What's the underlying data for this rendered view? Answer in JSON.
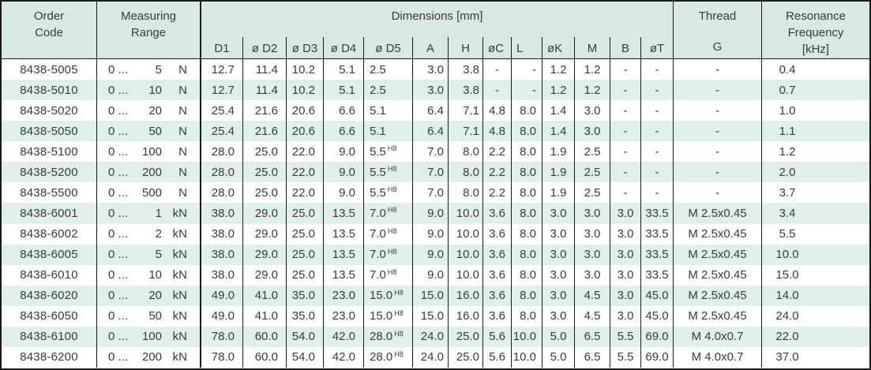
{
  "colors": {
    "header_bg": "#d7e9e4",
    "stripe_bg": "#dff0eb",
    "border": "#1a1a1a",
    "text": "#3a3a3a"
  },
  "table": {
    "header": {
      "order_line1": "Order",
      "order_line2": "Code",
      "range_line1": "Measuring",
      "range_line2": "Range",
      "dimensions": "Dimensions [mm]",
      "thread": "Thread",
      "res_line1": "Resonance",
      "res_line2": "Frequency",
      "sub": {
        "d1": "D1",
        "d2": "ø D2",
        "d3": "ø D3",
        "d4": "ø D4",
        "d5": "ø D5",
        "a": "A",
        "h": "H",
        "oc": "øC",
        "l": "L",
        "ok": "øK",
        "m": "M",
        "b": "B",
        "ot": "øT",
        "g": "G",
        "khz": "[kHz]"
      }
    },
    "rows": [
      {
        "code": "8438-5005",
        "range_from": "0 ...",
        "range_value": "5",
        "range_unit": "N",
        "d1": "12.7",
        "d2": "11.4",
        "d3": "10.2",
        "d4": "5.1",
        "d5": "2.5",
        "d5_sup": "",
        "a": "3.0",
        "h": "3.8",
        "oc": "-",
        "l": "-",
        "ok": "1.2",
        "m": "1.2",
        "b": "-",
        "ot": "-",
        "g": "-",
        "freq": "0.4"
      },
      {
        "code": "8438-5010",
        "range_from": "0 ...",
        "range_value": "10",
        "range_unit": "N",
        "d1": "12.7",
        "d2": "11.4",
        "d3": "10.2",
        "d4": "5.1",
        "d5": "2.5",
        "d5_sup": "",
        "a": "3.0",
        "h": "3.8",
        "oc": "-",
        "l": "-",
        "ok": "1.2",
        "m": "1.2",
        "b": "-",
        "ot": "-",
        "g": "-",
        "freq": "0.7"
      },
      {
        "code": "8438-5020",
        "range_from": "0 ...",
        "range_value": "20",
        "range_unit": "N",
        "d1": "25.4",
        "d2": "21.6",
        "d3": "20.6",
        "d4": "6.6",
        "d5": "5.1",
        "d5_sup": "",
        "a": "6.4",
        "h": "7.1",
        "oc": "4.8",
        "l": "8.0",
        "ok": "1.4",
        "m": "3.0",
        "b": "-",
        "ot": "-",
        "g": "-",
        "freq": "1.0"
      },
      {
        "code": "8438-5050",
        "range_from": "0 ...",
        "range_value": "50",
        "range_unit": "N",
        "d1": "25.4",
        "d2": "21.6",
        "d3": "20.6",
        "d4": "6.6",
        "d5": "5.1",
        "d5_sup": "",
        "a": "6.4",
        "h": "7.1",
        "oc": "4.8",
        "l": "8.0",
        "ok": "1.4",
        "m": "3.0",
        "b": "-",
        "ot": "-",
        "g": "-",
        "freq": "1.1"
      },
      {
        "code": "8438-5100",
        "range_from": "0 ...",
        "range_value": "100",
        "range_unit": "N",
        "d1": "28.0",
        "d2": "25.0",
        "d3": "22.0",
        "d4": "9.0",
        "d5": "5.5",
        "d5_sup": "H8",
        "a": "7.0",
        "h": "8.0",
        "oc": "2.2",
        "l": "8.0",
        "ok": "1.9",
        "m": "2.5",
        "b": "-",
        "ot": "-",
        "g": "-",
        "freq": "1.2"
      },
      {
        "code": "8438-5200",
        "range_from": "0 ...",
        "range_value": "200",
        "range_unit": "N",
        "d1": "28.0",
        "d2": "25.0",
        "d3": "22.0",
        "d4": "9.0",
        "d5": "5.5",
        "d5_sup": "H8",
        "a": "7.0",
        "h": "8.0",
        "oc": "2.2",
        "l": "8.0",
        "ok": "1.9",
        "m": "2.5",
        "b": "-",
        "ot": "-",
        "g": "-",
        "freq": "2.0"
      },
      {
        "code": "8438-5500",
        "range_from": "0 ...",
        "range_value": "500",
        "range_unit": "N",
        "d1": "28.0",
        "d2": "25.0",
        "d3": "22.0",
        "d4": "9.0",
        "d5": "5.5",
        "d5_sup": "H8",
        "a": "7.0",
        "h": "8.0",
        "oc": "2.2",
        "l": "8.0",
        "ok": "1.9",
        "m": "2.5",
        "b": "-",
        "ot": "-",
        "g": "-",
        "freq": "3.7"
      },
      {
        "code": "8438-6001",
        "range_from": "0 ...",
        "range_value": "1",
        "range_unit": "kN",
        "d1": "38.0",
        "d2": "29.0",
        "d3": "25.0",
        "d4": "13.5",
        "d5": "7.0",
        "d5_sup": "H8",
        "a": "9.0",
        "h": "10.0",
        "oc": "3.6",
        "l": "8.0",
        "ok": "3.0",
        "m": "3.0",
        "b": "3.0",
        "ot": "33.5",
        "g": "M 2.5x0.45",
        "freq": "3.4"
      },
      {
        "code": "8438-6002",
        "range_from": "0 ...",
        "range_value": "2",
        "range_unit": "kN",
        "d1": "38.0",
        "d2": "29.0",
        "d3": "25.0",
        "d4": "13.5",
        "d5": "7.0",
        "d5_sup": "H8",
        "a": "9.0",
        "h": "10.0",
        "oc": "3.6",
        "l": "8.0",
        "ok": "3.0",
        "m": "3.0",
        "b": "3.0",
        "ot": "33.5",
        "g": "M 2.5x0.45",
        "freq": "5.5"
      },
      {
        "code": "8438-6005",
        "range_from": "0 ...",
        "range_value": "5",
        "range_unit": "kN",
        "d1": "38.0",
        "d2": "29.0",
        "d3": "25.0",
        "d4": "13.5",
        "d5": "7.0",
        "d5_sup": "H8",
        "a": "9.0",
        "h": "10.0",
        "oc": "3.6",
        "l": "8.0",
        "ok": "3.0",
        "m": "3.0",
        "b": "3.0",
        "ot": "33.5",
        "g": "M 2.5x0.45",
        "freq": "10.0"
      },
      {
        "code": "8438-6010",
        "range_from": "0 ...",
        "range_value": "10",
        "range_unit": "kN",
        "d1": "38.0",
        "d2": "29.0",
        "d3": "25.0",
        "d4": "13.5",
        "d5": "7.0",
        "d5_sup": "H8",
        "a": "9.0",
        "h": "10.0",
        "oc": "3.6",
        "l": "8.0",
        "ok": "3.0",
        "m": "3.0",
        "b": "3.0",
        "ot": "33.5",
        "g": "M 2.5x0.45",
        "freq": "15.0"
      },
      {
        "code": "8438-6020",
        "range_from": "0 ...",
        "range_value": "20",
        "range_unit": "kN",
        "d1": "49.0",
        "d2": "41.0",
        "d3": "35.0",
        "d4": "23.0",
        "d5": "15.0",
        "d5_sup": "H8",
        "a": "15.0",
        "h": "16.0",
        "oc": "3.6",
        "l": "8.0",
        "ok": "3.0",
        "m": "4.5",
        "b": "3.0",
        "ot": "45.0",
        "g": "M 2.5x0.45",
        "freq": "14.0"
      },
      {
        "code": "8438-6050",
        "range_from": "0 ...",
        "range_value": "50",
        "range_unit": "kN",
        "d1": "49.0",
        "d2": "41.0",
        "d3": "35.0",
        "d4": "23.0",
        "d5": "15.0",
        "d5_sup": "H8",
        "a": "15.0",
        "h": "16.0",
        "oc": "3.6",
        "l": "8.0",
        "ok": "3.0",
        "m": "4.5",
        "b": "3.0",
        "ot": "45.0",
        "g": "M 2.5x0.45",
        "freq": "24.0"
      },
      {
        "code": "8438-6100",
        "range_from": "0 ...",
        "range_value": "100",
        "range_unit": "kN",
        "d1": "78.0",
        "d2": "60.0",
        "d3": "54.0",
        "d4": "42.0",
        "d5": "28.0",
        "d5_sup": "H8",
        "a": "24.0",
        "h": "25.0",
        "oc": "5.6",
        "l": "10.0",
        "ok": "5.0",
        "m": "6.5",
        "b": "5.5",
        "ot": "69.0",
        "g": "M 4.0x0.7",
        "freq": "22.0"
      },
      {
        "code": "8438-6200",
        "range_from": "0 ...",
        "range_value": "200",
        "range_unit": "kN",
        "d1": "78.0",
        "d2": "60.0",
        "d3": "54.0",
        "d4": "42.0",
        "d5": "28.0",
        "d5_sup": "H8",
        "a": "24.0",
        "h": "25.0",
        "oc": "5.6",
        "l": "10.0",
        "ok": "5.0",
        "m": "6.5",
        "b": "5.5",
        "ot": "69.0",
        "g": "M 4.0x0.7",
        "freq": "37.0"
      }
    ]
  }
}
